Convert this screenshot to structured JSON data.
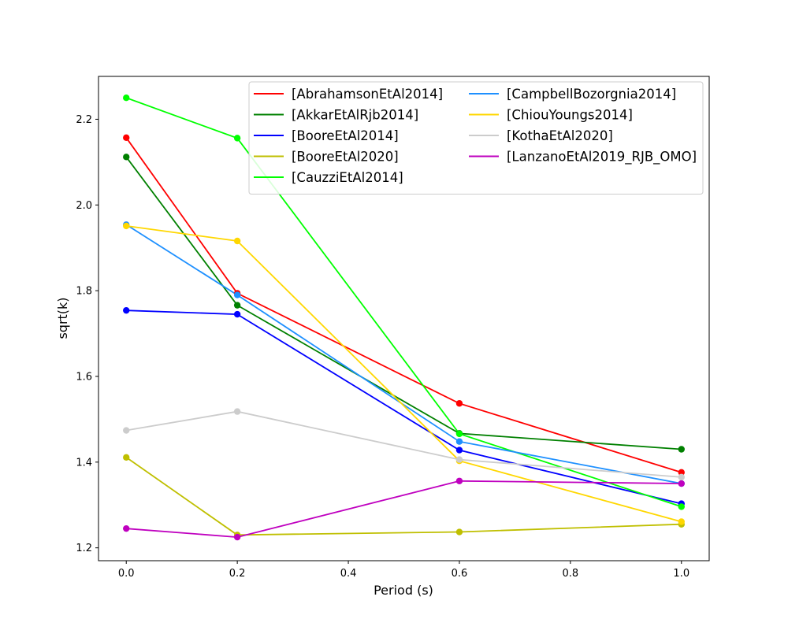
{
  "chart_data": {
    "type": "line",
    "title": "",
    "xlabel": "Period (s)",
    "ylabel": "sqrt(k)",
    "xlim": [
      -0.05,
      1.05
    ],
    "ylim": [
      1.17,
      2.3
    ],
    "xticks": [
      0.0,
      0.2,
      0.4,
      0.6,
      0.8,
      1.0
    ],
    "xtick_labels": [
      "0.0",
      "0.2",
      "0.4",
      "0.6",
      "0.8",
      "1.0"
    ],
    "yticks": [
      1.2,
      1.4,
      1.6,
      1.8,
      2.0,
      2.2
    ],
    "ytick_labels": [
      "1.2",
      "1.4",
      "1.6",
      "1.8",
      "2.0",
      "2.2"
    ],
    "legend_position": "top-right",
    "legend_columns": 2,
    "x": [
      0.0,
      0.2,
      0.6,
      1.0
    ],
    "series": [
      {
        "name": "[AbrahamsonEtAl2014]",
        "color": "#ff0000",
        "values": [
          2.157,
          1.794,
          1.537,
          1.376
        ]
      },
      {
        "name": "[AkkarEtAlRjb2014]",
        "color": "#008000",
        "values": [
          2.112,
          1.766,
          1.467,
          1.43
        ]
      },
      {
        "name": "[BooreEtAl2014]",
        "color": "#0000ff",
        "values": [
          1.754,
          1.745,
          1.428,
          1.303
        ]
      },
      {
        "name": "[BooreEtAl2020]",
        "color": "#bfbf00",
        "values": [
          1.411,
          1.23,
          1.237,
          1.255
        ]
      },
      {
        "name": "[CauzziEtAl2014]",
        "color": "#00ff00",
        "values": [
          2.25,
          2.156,
          1.466,
          1.296
        ]
      },
      {
        "name": "[CampbellBozorgnia2014]",
        "color": "#1e90ff",
        "values": [
          1.954,
          1.79,
          1.448,
          1.35
        ]
      },
      {
        "name": "[ChiouYoungs2014]",
        "color": "#ffd700",
        "values": [
          1.951,
          1.916,
          1.403,
          1.261
        ]
      },
      {
        "name": "[KothaEtAl2020]",
        "color": "#cccccc",
        "values": [
          1.474,
          1.518,
          1.406,
          1.365
        ]
      },
      {
        "name": "[LanzanoEtAl2019_RJB_OMO]",
        "color": "#bf00bf",
        "values": [
          1.245,
          1.225,
          1.356,
          1.35
        ]
      }
    ]
  }
}
